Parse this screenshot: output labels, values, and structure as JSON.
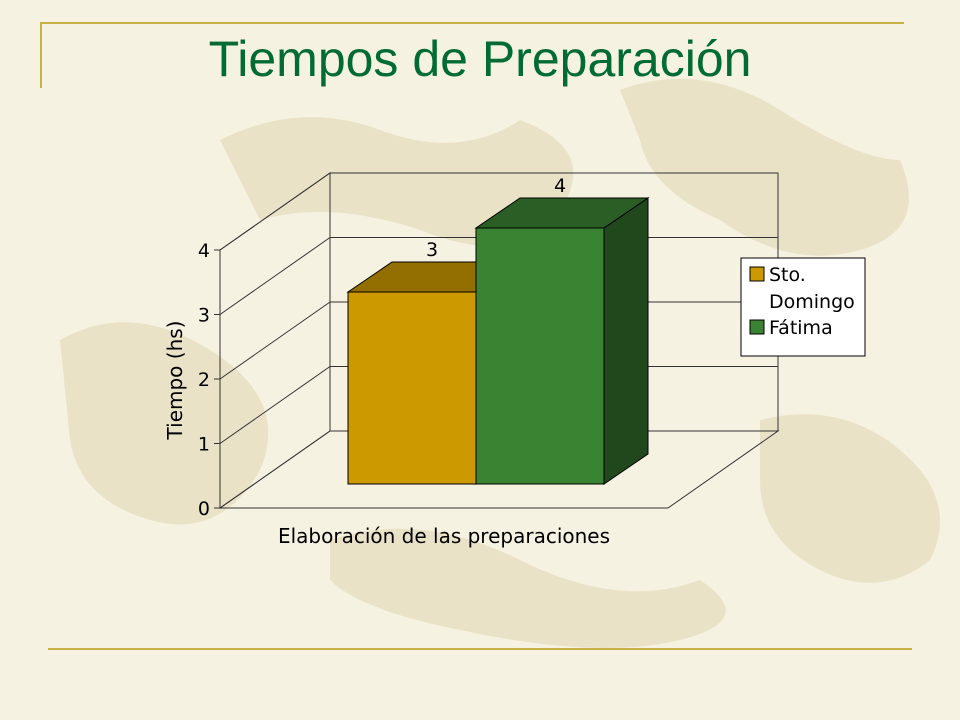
{
  "slide": {
    "title": "Tiempos de Preparación",
    "title_color": "#006b33",
    "rule_color": "#c8b145"
  },
  "chart_data": {
    "type": "bar",
    "variant": "3d-clustered",
    "title": "",
    "xlabel": "Elaboración de las preparaciones",
    "ylabel": "Tiempo (hs)",
    "ylim": [
      0,
      4
    ],
    "yticks": [
      "0",
      "1",
      "2",
      "3",
      "4"
    ],
    "categories": [
      ""
    ],
    "series": [
      {
        "name": "Sto. Domingo",
        "values": [
          3
        ],
        "data_label": "3",
        "color": "#cc9900"
      },
      {
        "name": "Fátima",
        "values": [
          4
        ],
        "data_label": "4",
        "color": "#3a8332"
      }
    ],
    "grid": true,
    "legend": "right"
  }
}
